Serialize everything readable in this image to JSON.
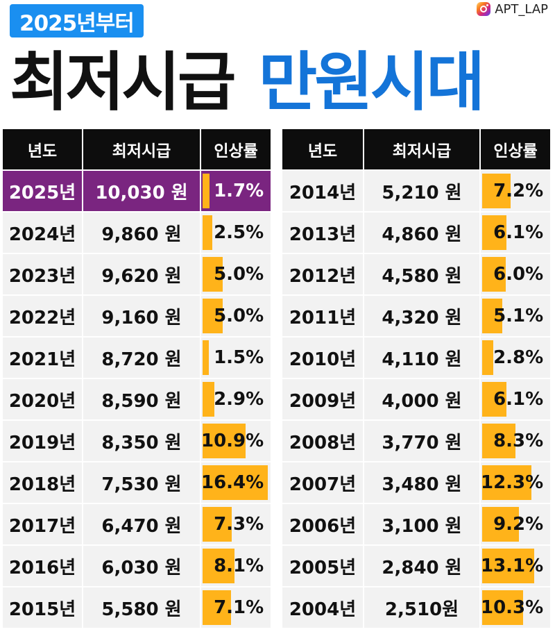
{
  "header": {
    "badge": "2025년부터",
    "title_part1": "최저시급",
    "title_part2": "만원시대",
    "brand": "APT_LAP"
  },
  "columns": {
    "year": "년도",
    "wage": "최저시급",
    "rate": "인상률"
  },
  "colors": {
    "badge": "#1a8ff0",
    "title_blue": "#1474d8",
    "highlight_row": "#7a2580",
    "bar": "#ffb31a",
    "header_bg": "#0d0d0d"
  },
  "left_table": [
    {
      "year": "2025년",
      "wage": "10,030 원",
      "rate": "1.7%",
      "rate_value": 1.7,
      "highlight": true
    },
    {
      "year": "2024년",
      "wage": "9,860 원",
      "rate": "2.5%",
      "rate_value": 2.5
    },
    {
      "year": "2023년",
      "wage": "9,620 원",
      "rate": "5.0%",
      "rate_value": 5.0
    },
    {
      "year": "2022년",
      "wage": "9,160 원",
      "rate": "5.0%",
      "rate_value": 5.0
    },
    {
      "year": "2021년",
      "wage": "8,720 원",
      "rate": "1.5%",
      "rate_value": 1.5
    },
    {
      "year": "2020년",
      "wage": "8,590 원",
      "rate": "2.9%",
      "rate_value": 2.9
    },
    {
      "year": "2019년",
      "wage": "8,350 원",
      "rate": "10.9%",
      "rate_value": 10.9
    },
    {
      "year": "2018년",
      "wage": "7,530 원",
      "rate": "16.4%",
      "rate_value": 16.4
    },
    {
      "year": "2017년",
      "wage": "6,470 원",
      "rate": "7.3%",
      "rate_value": 7.3
    },
    {
      "year": "2016년",
      "wage": "6,030 원",
      "rate": "8.1%",
      "rate_value": 8.1
    },
    {
      "year": "2015년",
      "wage": "5,580 원",
      "rate": "7.1%",
      "rate_value": 7.1
    }
  ],
  "right_table": [
    {
      "year": "2014년",
      "wage": "5,210 원",
      "rate": "7.2%",
      "rate_value": 7.2
    },
    {
      "year": "2013년",
      "wage": "4,860 원",
      "rate": "6.1%",
      "rate_value": 6.1
    },
    {
      "year": "2012년",
      "wage": "4,580 원",
      "rate": "6.0%",
      "rate_value": 6.0
    },
    {
      "year": "2011년",
      "wage": "4,320 원",
      "rate": "5.1%",
      "rate_value": 5.1
    },
    {
      "year": "2010년",
      "wage": "4,110 원",
      "rate": "2.8%",
      "rate_value": 2.8
    },
    {
      "year": "2009년",
      "wage": "4,000 원",
      "rate": "6.1%",
      "rate_value": 6.1
    },
    {
      "year": "2008년",
      "wage": "3,770 원",
      "rate": "8.3%",
      "rate_value": 8.3
    },
    {
      "year": "2007년",
      "wage": "3,480 원",
      "rate": "12.3%",
      "rate_value": 12.3
    },
    {
      "year": "2006년",
      "wage": "3,100 원",
      "rate": "9.2%",
      "rate_value": 9.2
    },
    {
      "year": "2005년",
      "wage": "2,840 원",
      "rate": "13.1%",
      "rate_value": 13.1
    },
    {
      "year": "2004년",
      "wage": "2,510원",
      "rate": "10.3%",
      "rate_value": 10.3
    }
  ]
}
